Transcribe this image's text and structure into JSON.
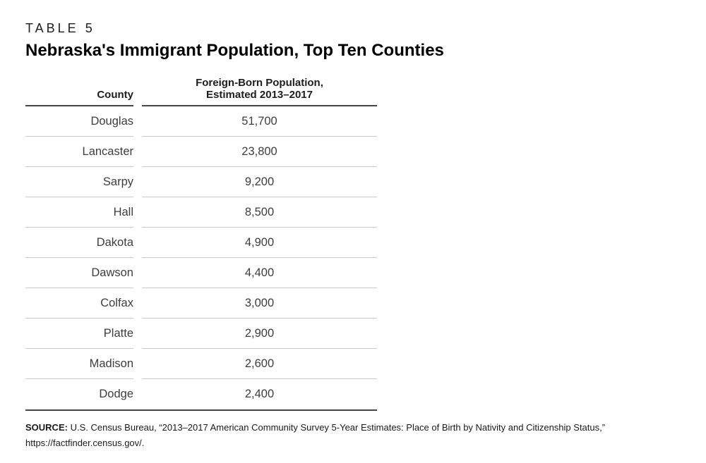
{
  "page": {
    "kicker": "TABLE 5",
    "title": "Nebraska's Immigrant Population, Top Ten Counties"
  },
  "table": {
    "header": {
      "col1": "County",
      "col2_line1": "Foreign-Born Population,",
      "col2_line2": "Estimated 2013–2017"
    },
    "rows": [
      {
        "county": "Douglas",
        "value": "51,700"
      },
      {
        "county": "Lancaster",
        "value": "23,800"
      },
      {
        "county": "Sarpy",
        "value": "9,200"
      },
      {
        "county": "Hall",
        "value": "8,500"
      },
      {
        "county": "Dakota",
        "value": "4,900"
      },
      {
        "county": "Dawson",
        "value": "4,400"
      },
      {
        "county": "Colfax",
        "value": "3,000"
      },
      {
        "county": "Platte",
        "value": "2,900"
      },
      {
        "county": "Madison",
        "value": "2,600"
      },
      {
        "county": "Dodge",
        "value": "2,400"
      }
    ]
  },
  "source": {
    "label": "SOURCE:",
    "text": "U.S. Census Bureau, “2013–2017 American Community Survey 5-Year Estimates: Place of Birth by Nativity and Citizenship Status,”",
    "line2": "https://factfinder.census.gov/."
  },
  "colors": {
    "rule_dark": "#454545",
    "rule_light": "#c9c9c9",
    "text_primary": "#1d1d1d",
    "text_body": "#3d3d3d"
  },
  "chart_data": {
    "type": "table",
    "title": "Nebraska's Immigrant Population, Top Ten Counties",
    "columns": [
      "County",
      "Foreign-Born Population, Estimated 2013–2017"
    ],
    "rows": [
      [
        "Douglas",
        51700
      ],
      [
        "Lancaster",
        23800
      ],
      [
        "Sarpy",
        9200
      ],
      [
        "Hall",
        8500
      ],
      [
        "Dakota",
        4900
      ],
      [
        "Dawson",
        4400
      ],
      [
        "Colfax",
        3000
      ],
      [
        "Platte",
        2900
      ],
      [
        "Madison",
        2600
      ],
      [
        "Dodge",
        2400
      ]
    ]
  }
}
